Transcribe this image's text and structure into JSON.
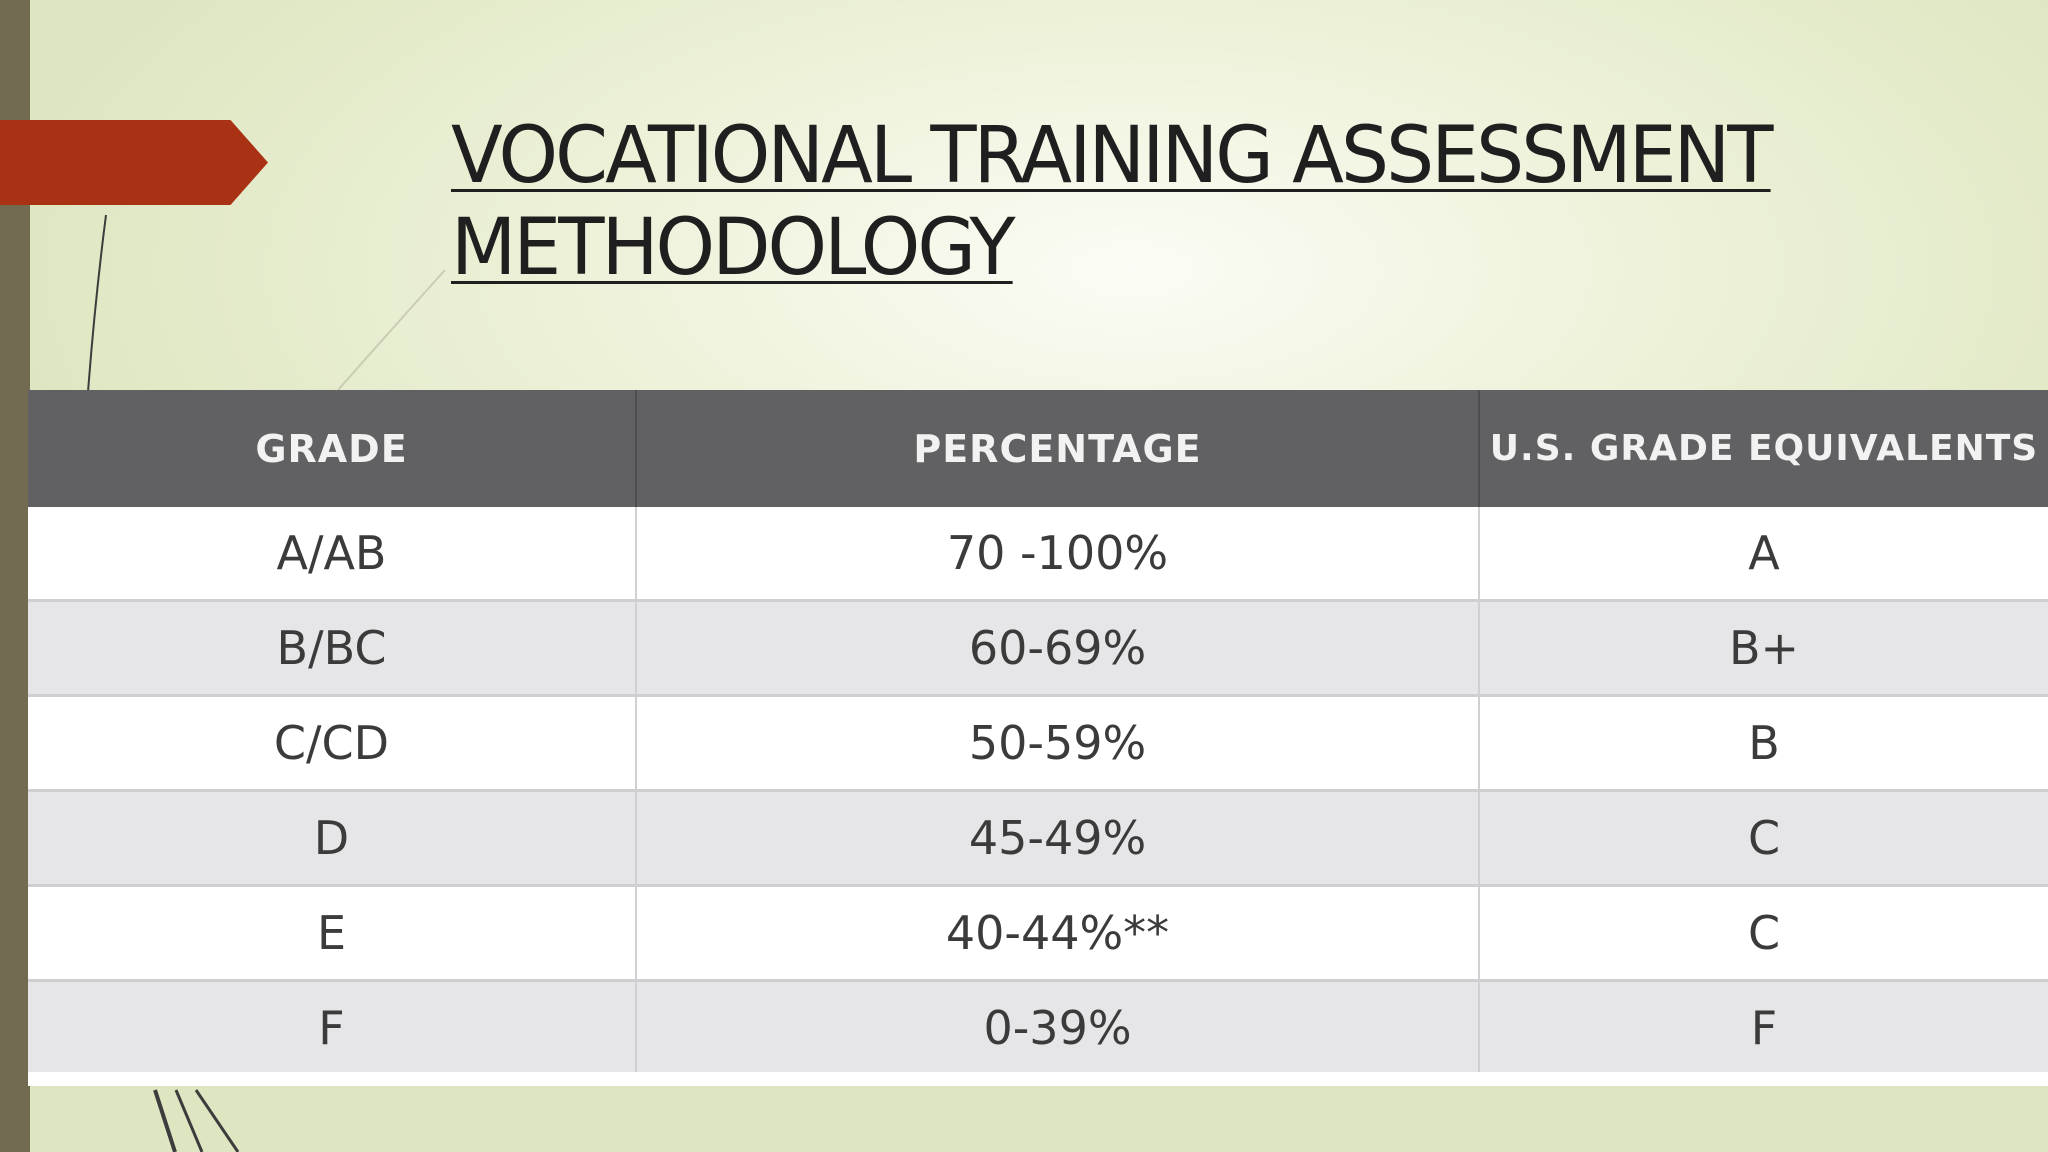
{
  "slide": {
    "title": "VOCATIONAL TRAINING ASSESSMENT METHODOLOGY"
  },
  "table": {
    "headers": [
      "GRADE",
      "PERCENTAGE",
      "U.S. GRADE EQUIVALENTS"
    ],
    "rows": [
      [
        "A/AB",
        "70 -100%",
        "A"
      ],
      [
        "B/BC",
        "60-69%",
        "B+"
      ],
      [
        "C/CD",
        "50-59%",
        "B"
      ],
      [
        "D",
        "45-49%",
        "C"
      ],
      [
        "E",
        "40-44%**",
        "C"
      ],
      [
        "F",
        "0-39%",
        "F"
      ]
    ]
  },
  "colors": {
    "accent_arrow": "#a93214",
    "left_bar": "#726b52",
    "header_bg": "#616163",
    "alt_row_bg": "#e6e6e8"
  }
}
